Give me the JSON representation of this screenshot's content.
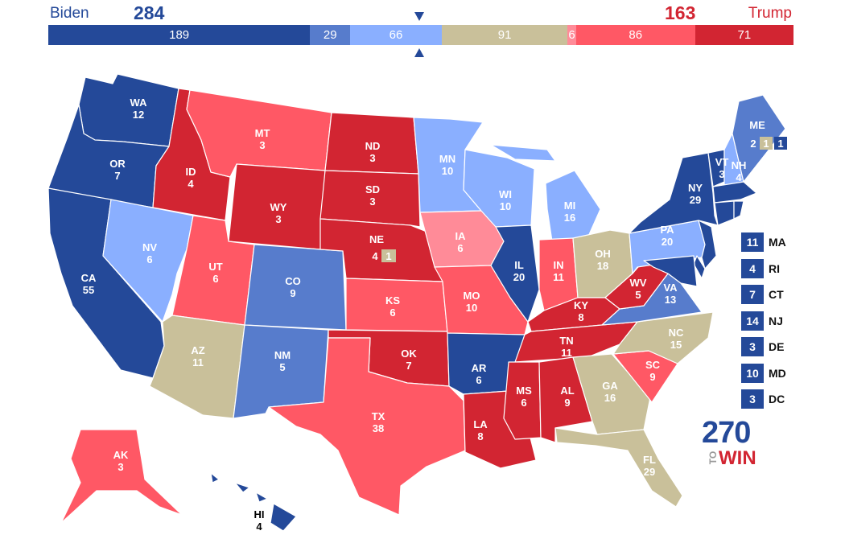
{
  "header": {
    "biden_label": "Biden",
    "biden_total": "284",
    "trump_label": "Trump",
    "trump_total": "163"
  },
  "bar_segments": [
    {
      "label": "189",
      "value": 189,
      "color": "#244999"
    },
    {
      "label": "29",
      "value": 29,
      "color": "#577ccc"
    },
    {
      "label": "66",
      "value": 66,
      "color": "#8aafff"
    },
    {
      "label": "91",
      "value": 91,
      "color": "#c9c09a"
    },
    {
      "label": "6",
      "value": 6,
      "color": "#ff8b98"
    },
    {
      "label": "86",
      "value": 86,
      "color": "#ff5865"
    },
    {
      "label": "71",
      "value": 71,
      "color": "#d22532"
    }
  ],
  "colors": {
    "safe_d": "#244999",
    "likely_d": "#577ccc",
    "lean_d": "#8aafff",
    "tossup": "#c9c09a",
    "tilt_r": "#ff8b98",
    "likely_r": "#ff5865",
    "safe_r": "#d22532"
  },
  "states": {
    "WA": {
      "abbr": "WA",
      "ev": "12"
    },
    "OR": {
      "abbr": "OR",
      "ev": "7"
    },
    "CA": {
      "abbr": "CA",
      "ev": "55"
    },
    "ID": {
      "abbr": "ID",
      "ev": "4"
    },
    "NV": {
      "abbr": "NV",
      "ev": "6"
    },
    "MT": {
      "abbr": "MT",
      "ev": "3"
    },
    "WY": {
      "abbr": "WY",
      "ev": "3"
    },
    "UT": {
      "abbr": "UT",
      "ev": "6"
    },
    "AZ": {
      "abbr": "AZ",
      "ev": "11"
    },
    "CO": {
      "abbr": "CO",
      "ev": "9"
    },
    "NM": {
      "abbr": "NM",
      "ev": "5"
    },
    "ND": {
      "abbr": "ND",
      "ev": "3"
    },
    "SD": {
      "abbr": "SD",
      "ev": "3"
    },
    "NE": {
      "abbr": "NE",
      "ev": "4",
      "district_ev": "1"
    },
    "KS": {
      "abbr": "KS",
      "ev": "6"
    },
    "OK": {
      "abbr": "OK",
      "ev": "7"
    },
    "TX": {
      "abbr": "TX",
      "ev": "38"
    },
    "MN": {
      "abbr": "MN",
      "ev": "10"
    },
    "IA": {
      "abbr": "IA",
      "ev": "6"
    },
    "MO": {
      "abbr": "MO",
      "ev": "10"
    },
    "AR": {
      "abbr": "AR",
      "ev": "6"
    },
    "LA": {
      "abbr": "LA",
      "ev": "8"
    },
    "WI": {
      "abbr": "WI",
      "ev": "10"
    },
    "IL": {
      "abbr": "IL",
      "ev": "20"
    },
    "MI": {
      "abbr": "MI",
      "ev": "16"
    },
    "IN": {
      "abbr": "IN",
      "ev": "11"
    },
    "OH": {
      "abbr": "OH",
      "ev": "18"
    },
    "KY": {
      "abbr": "KY",
      "ev": "8"
    },
    "TN": {
      "abbr": "TN",
      "ev": "11"
    },
    "MS": {
      "abbr": "MS",
      "ev": "6"
    },
    "AL": {
      "abbr": "AL",
      "ev": "9"
    },
    "GA": {
      "abbr": "GA",
      "ev": "16"
    },
    "FL": {
      "abbr": "FL",
      "ev": "29"
    },
    "SC": {
      "abbr": "SC",
      "ev": "9"
    },
    "NC": {
      "abbr": "NC",
      "ev": "15"
    },
    "VA": {
      "abbr": "VA",
      "ev": "13"
    },
    "WV": {
      "abbr": "WV",
      "ev": "5"
    },
    "PA": {
      "abbr": "PA",
      "ev": "20"
    },
    "NY": {
      "abbr": "NY",
      "ev": "29"
    },
    "VT": {
      "abbr": "VT",
      "ev": "3"
    },
    "NH": {
      "abbr": "NH",
      "ev": "4"
    },
    "ME": {
      "abbr": "ME",
      "ev": "2",
      "district_ev_1": "1",
      "district_ev_2": "1"
    },
    "AK": {
      "abbr": "AK",
      "ev": "3"
    },
    "HI": {
      "abbr": "HI",
      "ev": "4"
    }
  },
  "small_states": [
    {
      "ev": "11",
      "abbr": "MA"
    },
    {
      "ev": "4",
      "abbr": "RI"
    },
    {
      "ev": "7",
      "abbr": "CT"
    },
    {
      "ev": "14",
      "abbr": "NJ"
    },
    {
      "ev": "3",
      "abbr": "DE"
    },
    {
      "ev": "10",
      "abbr": "MD"
    },
    {
      "ev": "3",
      "abbr": "DC"
    }
  ],
  "logo": {
    "number": "270",
    "to": "TO",
    "win": "WIN"
  }
}
